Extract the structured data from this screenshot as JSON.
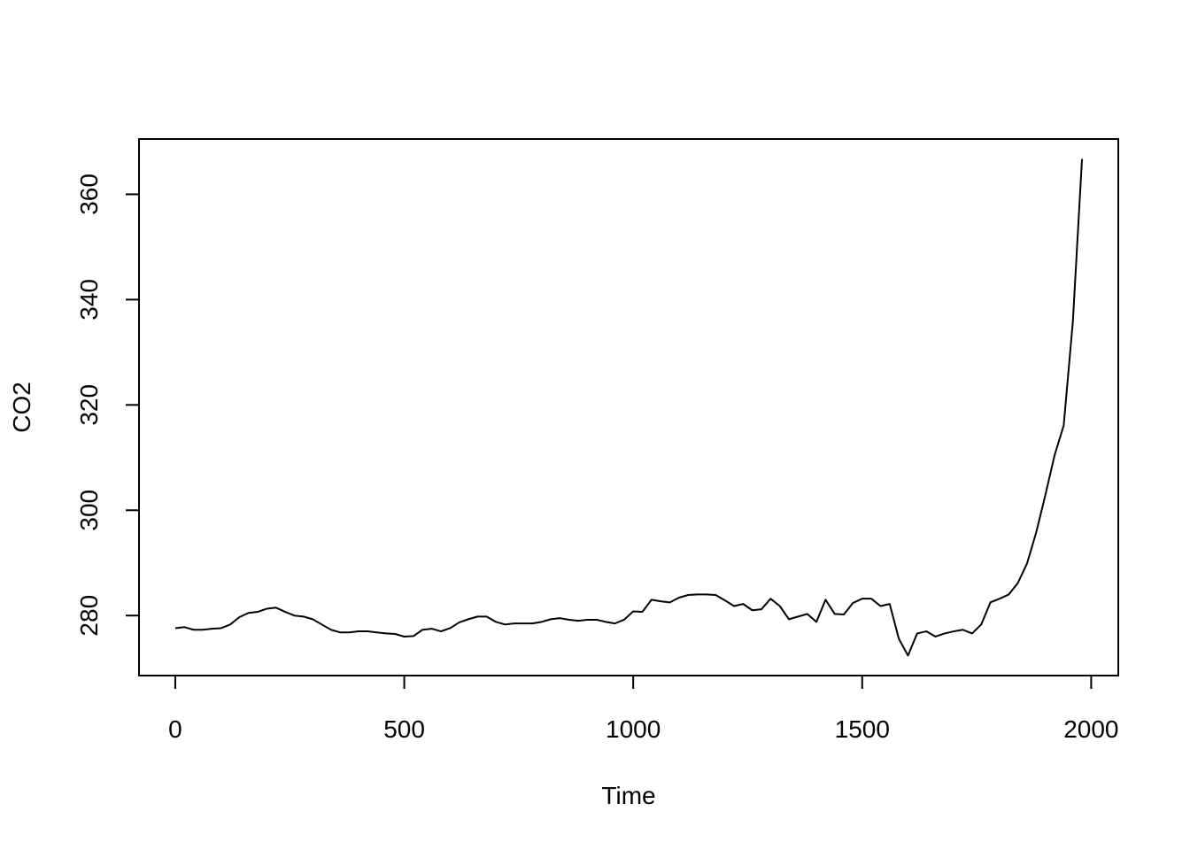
{
  "chart_data": {
    "type": "line",
    "xlabel": "Time",
    "ylabel": "CO2",
    "color": "#000000",
    "x": [
      0,
      20,
      40,
      60,
      80,
      100,
      120,
      140,
      160,
      180,
      200,
      220,
      240,
      260,
      280,
      300,
      320,
      340,
      360,
      380,
      400,
      420,
      440,
      460,
      480,
      500,
      520,
      540,
      560,
      580,
      600,
      620,
      640,
      660,
      680,
      700,
      720,
      740,
      760,
      780,
      800,
      820,
      840,
      860,
      880,
      900,
      920,
      940,
      960,
      980,
      1000,
      1020,
      1040,
      1060,
      1080,
      1100,
      1120,
      1140,
      1160,
      1180,
      1200,
      1220,
      1240,
      1260,
      1280,
      1300,
      1320,
      1340,
      1360,
      1380,
      1400,
      1420,
      1440,
      1460,
      1480,
      1500,
      1520,
      1540,
      1560,
      1580,
      1600,
      1620,
      1640,
      1660,
      1680,
      1700,
      1720,
      1740,
      1760,
      1780,
      1800,
      1820,
      1840,
      1860,
      1880,
      1900,
      1920,
      1940,
      1960,
      1980
    ],
    "values": [
      277.6,
      277.8,
      277.3,
      277.3,
      277.5,
      277.6,
      278.3,
      279.7,
      280.5,
      280.7,
      281.3,
      281.5,
      280.7,
      280.0,
      279.8,
      279.3,
      278.3,
      277.3,
      276.8,
      276.8,
      277.0,
      277.0,
      276.8,
      276.6,
      276.5,
      276.0,
      276.1,
      277.3,
      277.5,
      277.0,
      277.6,
      278.7,
      279.3,
      279.8,
      279.8,
      278.8,
      278.3,
      278.5,
      278.5,
      278.5,
      278.8,
      279.3,
      279.5,
      279.2,
      279.0,
      279.2,
      279.2,
      278.8,
      278.5,
      279.2,
      280.8,
      280.7,
      283.0,
      282.7,
      282.5,
      283.4,
      283.9,
      284.0,
      284.0,
      283.9,
      282.9,
      281.8,
      282.2,
      281.0,
      281.2,
      283.2,
      281.8,
      279.3,
      279.8,
      280.3,
      278.8,
      283.0,
      280.3,
      280.2,
      282.4,
      283.2,
      283.2,
      281.8,
      282.2,
      275.6,
      272.4,
      276.6,
      277.0,
      276.0,
      276.6,
      277.0,
      277.3,
      276.6,
      278.3,
      282.5,
      283.2,
      284.0,
      286.2,
      289.9,
      295.8,
      302.9,
      310.4,
      316.1,
      335.8,
      366.7
    ],
    "xlim": [
      -79.2,
      2059.2
    ],
    "ylim": [
      268.6,
      370.5
    ],
    "xticks": [
      0,
      500,
      1000,
      1500,
      2000
    ],
    "yticks": [
      280,
      300,
      320,
      340,
      360
    ]
  }
}
